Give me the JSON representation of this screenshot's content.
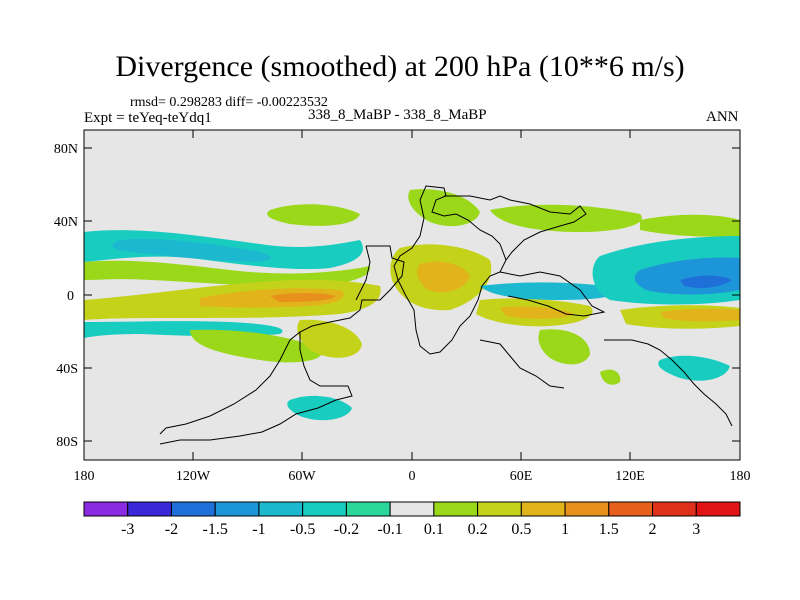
{
  "title": "Divergence (smoothed) at 200 hPa (10**6 m/s)",
  "stats_text": "rmsd= 0.298283 diff= -0.00223532",
  "experiment_label": "Expt = teYeq-teYdq1",
  "case_label": "338_8_MaBP - 338_8_MaBP",
  "season": "ANN",
  "y_axis_ticks": [
    "80N",
    "40N",
    "0",
    "40S",
    "80S"
  ],
  "x_axis_ticks": [
    "180",
    "120W",
    "60W",
    "0",
    "60E",
    "120E",
    "180"
  ],
  "colorbar": {
    "labels": [
      "-3",
      "-2",
      "-1.5",
      "-1",
      "-0.5",
      "-0.2",
      "-0.1",
      "0.1",
      "0.2",
      "0.5",
      "1",
      "1.5",
      "2",
      "3"
    ],
    "colors": [
      "#8a2be2",
      "#3a28d8",
      "#1f6fd8",
      "#1c96d8",
      "#1cb8d0",
      "#19ccc0",
      "#2bd69a",
      "#e6e6e6",
      "#9ad819",
      "#c4d21a",
      "#e0b41a",
      "#e8901c",
      "#e6601c",
      "#e0301c",
      "#e01414"
    ]
  },
  "map_colors": {
    "background": "#e6e6e6",
    "outline": "#000000"
  }
}
